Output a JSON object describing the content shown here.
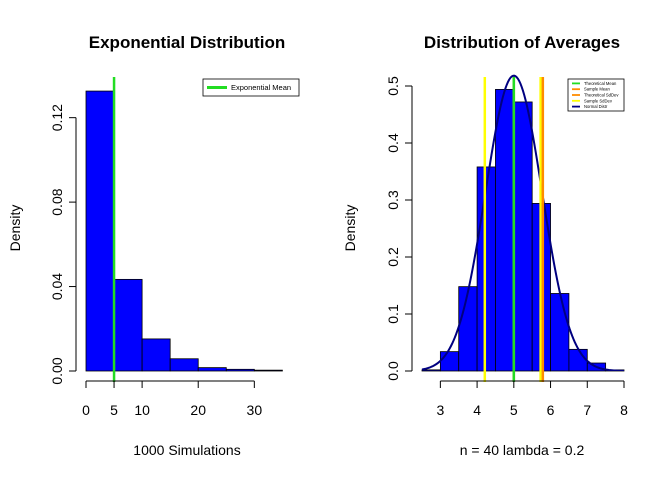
{
  "chart_data": [
    {
      "type": "bar",
      "title": "Exponential Distribution",
      "xlabel": "1000 Simulations",
      "ylabel": "Density",
      "xlim": [
        0,
        36
      ],
      "ylim": [
        0,
        0.135
      ],
      "x_ticks": [
        0,
        5,
        10,
        20,
        30
      ],
      "x_tick_labels": [
        "0",
        "5",
        "10",
        "20",
        "30"
      ],
      "y_ticks": [
        0,
        0.04,
        0.08,
        0.12
      ],
      "y_tick_labels": [
        "0.00",
        "0.04",
        "0.08",
        "0.12"
      ],
      "bins": [
        {
          "x0": 0,
          "x1": 5,
          "density": 0.1326
        },
        {
          "x0": 5,
          "x1": 10,
          "density": 0.0434
        },
        {
          "x0": 10,
          "x1": 15,
          "density": 0.0152
        },
        {
          "x0": 15,
          "x1": 20,
          "density": 0.0058
        },
        {
          "x0": 20,
          "x1": 25,
          "density": 0.0016
        },
        {
          "x0": 25,
          "x1": 30,
          "density": 0.0008
        },
        {
          "x0": 30,
          "x1": 35,
          "density": 0.0004
        }
      ],
      "vlines": [
        {
          "name": "Exponential Mean",
          "x": 5.0,
          "color": "#22dd22"
        }
      ],
      "legend": {
        "position": "top-right",
        "entries": [
          {
            "label": "Exponential Mean",
            "color": "#22dd22"
          }
        ]
      },
      "bar_color": "#0000ff",
      "grid": false
    },
    {
      "type": "bar",
      "title": "Distribution of Averages",
      "xlabel": "n = 40  lambda = 0.2",
      "ylabel": "Density",
      "xlim": [
        2.5,
        8.0
      ],
      "ylim": [
        0,
        0.5
      ],
      "x_ticks": [
        3,
        4,
        5,
        6,
        7,
        8
      ],
      "x_tick_labels": [
        "3",
        "4",
        "5",
        "6",
        "7",
        "8"
      ],
      "y_ticks": [
        0,
        0.1,
        0.2,
        0.3,
        0.4,
        0.5
      ],
      "y_tick_labels": [
        "0.0",
        "0.1",
        "0.2",
        "0.3",
        "0.4",
        "0.5"
      ],
      "bins": [
        {
          "x0": 2.5,
          "x1": 3.0,
          "density": 0.002
        },
        {
          "x0": 3.0,
          "x1": 3.5,
          "density": 0.034
        },
        {
          "x0": 3.5,
          "x1": 4.0,
          "density": 0.148
        },
        {
          "x0": 4.0,
          "x1": 4.5,
          "density": 0.358
        },
        {
          "x0": 4.5,
          "x1": 5.0,
          "density": 0.494
        },
        {
          "x0": 5.0,
          "x1": 5.5,
          "density": 0.472
        },
        {
          "x0": 5.5,
          "x1": 6.0,
          "density": 0.294
        },
        {
          "x0": 6.0,
          "x1": 6.5,
          "density": 0.136
        },
        {
          "x0": 6.5,
          "x1": 7.0,
          "density": 0.038
        },
        {
          "x0": 7.0,
          "x1": 7.5,
          "density": 0.014
        },
        {
          "x0": 7.5,
          "x1": 8.0,
          "density": 0.002
        }
      ],
      "vlines": [
        {
          "name": "Theoretical Mean",
          "x": 5.0,
          "color": "#22dd22"
        },
        {
          "name": "Sample Mean",
          "x": 5.0,
          "color": "#ff8c00"
        },
        {
          "name": "Theoretical SdDev",
          "x": 5.79,
          "color": "#ff8c00"
        },
        {
          "name": "Sample SdDev",
          "x": 4.21,
          "color": "#ffff00"
        },
        {
          "name": "Sample SdDev",
          "x": 5.73,
          "color": "#ffff00"
        }
      ],
      "normal_curve": {
        "name": "Normal Distr",
        "mean": 5.0,
        "sd": 0.77,
        "color": "#000080"
      },
      "legend": {
        "position": "top-right",
        "entries": [
          {
            "label": "Theoretical Mean",
            "color": "#22dd22"
          },
          {
            "label": "Sample Mean",
            "color": "#ff8c00"
          },
          {
            "label": "Theoretical SdDev",
            "color": "#ff8c00"
          },
          {
            "label": "Sample SdDev",
            "color": "#ffff00"
          },
          {
            "label": "Normal Distr",
            "color": "#000080"
          }
        ]
      },
      "bar_color": "#0000ff",
      "grid": false
    }
  ]
}
